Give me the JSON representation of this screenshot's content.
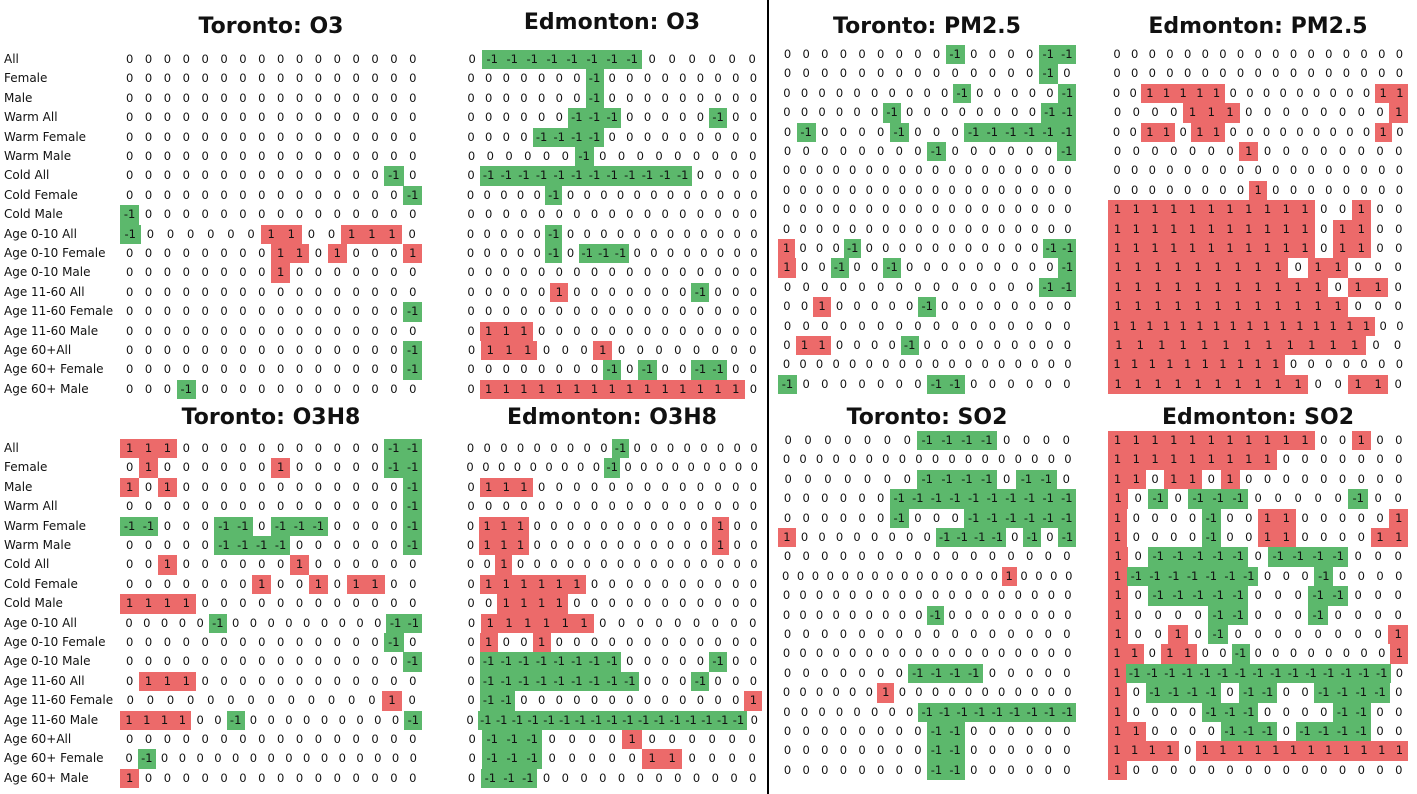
{
  "chart_data": {
    "type": "heatmap",
    "row_labels": [
      "All",
      "Female",
      "Male",
      "Warm All",
      "Warm Female",
      "Warm Male",
      "Cold All",
      "Cold Female",
      "Cold Male",
      "Age 0-10 All",
      "Age 0-10 Female",
      "Age 0-10 Male",
      "Age 11-60 All",
      "Age 11-60 Female",
      "Age 11-60 Male",
      "Age 60+All",
      "Age 60+ Female",
      "Age 60+ Male"
    ],
    "colors": {
      "negative": "#5cb86c",
      "positive": "#ec6a6a",
      "zero": "#ffffff"
    },
    "panels": [
      {
        "title": "Toronto: O3",
        "values": [
          "0000000000000000",
          "0000000000000000",
          "0000000000000000",
          "0000000000000000",
          "0000000000000000",
          "0000000000000000",
          "00000000000000-10",
          "000000000000000-1",
          "-1000000000000000",
          "-100000011001110",
          "0000000011010001",
          "0000000010000000",
          "0000000000000000",
          "000000000000000-1",
          "0000000000000000",
          "000000000000000-1",
          "000000000000000-1",
          "000-1000000000000"
        ]
      },
      {
        "title": "Edmonton: O3",
        "values": [
          "0-1-1-1-1-1-1-1-1000000",
          "0000000-1000000000",
          "0000000-1000000000",
          "000000-1-1-100000-100",
          "0000-1-1-1-1000000000",
          "000000-1000000000",
          "0-1-1-1-1-1-1-1-1-1-1-1-10000",
          "00000-1000000000000",
          "00000000000000000",
          "00000-1000000000000",
          "00000-10-1-1-100000000",
          "00000000000000000",
          "0000010000000-1000",
          "00000000000000000",
          "01110000000000000",
          "0111000100000000",
          "00000000-10-100-1-100",
          "01111111111111110"
        ]
      },
      {
        "title": "Toronto: PM2.5",
        "values": [
          "000000000-10000-1-1",
          "00000000000000-10",
          "0000000000-100000-1",
          "000000-100000000-1-1",
          "0-10000-1000-1-1-1-1-1-1",
          "00000000-1000000-1",
          "000000000000000000",
          "000000000000000000",
          "000000000000000000",
          "000000000000000000",
          "1000-100000000000-1-1",
          "100-100-1000000000-1",
          "00000000000000-1-1",
          "00100000-100000000",
          "0000000000000000",
          "0110000-1000000000",
          "000000000000000000",
          "-10000000-1-1000000"
        ]
      },
      {
        "title": "Edmonton: PM2.5",
        "values": [
          "00000000000000000",
          "00000000000000000",
          "001111100000000011",
          "0000111000000001",
          "001101100000000010",
          "0000000100000000",
          "00000000000000000",
          "00000000100000000",
          "1111111111100100",
          "1111111111101100",
          "1111111111101100",
          "111111111011000",
          "111111111110110",
          "111111111111000",
          "111111111111111100",
          "11111111111100",
          "11111111110000000",
          "111111111100110"
        ]
      },
      {
        "title": "Toronto: O3H8",
        "values": [
          "11100000000000-1-1",
          "01000000100000-1-1",
          "101000000000000-1",
          "000000000000000-1",
          "-1-1000-1-10-1-1-10000-1",
          "00000-1-1-1-1000000-1",
          "0010000001000000",
          "0000000100101100",
          "1111000000000000",
          "00000-1000000000-1-1",
          "00000000000000-10",
          "000000000000000-1",
          "0111000000000000",
          "000000000000010",
          "111100-1000000000-1",
          "0000000000000000",
          "0-1000000000000000",
          "1000000000000000"
        ]
      },
      {
        "title": "Edmonton: O3H8",
        "values": [
          "000000000-100000000",
          "000000000-1000000000",
          "01110000000000000",
          "00000000000000000",
          "011100000000000100",
          "011100000000000100",
          "001000000000000000",
          "01111110000000000",
          "00111100000000000",
          "0111111000000000",
          "01001000000000000",
          "0-1-1-1-1-1-1-1-100000-100",
          "0-1-1-1-1-1-1-1-1-1000-1000",
          "0-1-100000000000001",
          "0-1-1-1-1-1-1-1-1-1-1-1-1-1-1-1-1-10",
          "0-1-1-100001000000",
          "0-1-1-100000110000",
          "0-1-1-1000000000000"
        ]
      },
      {
        "title": "Toronto: SO2",
        "values": [
          "0000000-1-1-1-10000",
          "000000000000000000",
          "0000000-1-1-1-10-1-10",
          "000000-1-1-1-1-1-1-1-1-1-1",
          "000000-1000-1-1-1-1-1-1",
          "100000000-1-1-1-10-10-1",
          "0000000000000000",
          "00000000000000010000",
          "000000000000000000",
          "000000000-100000000",
          "0000000000000000",
          "000000000000000000",
          "0000000-1-1-1-100000",
          "000000100000000000",
          "00000000-1-1-1-1-1-1-1-1-1",
          "00000000-1-1000000",
          "00000000-1-1000000",
          "00000000-1-1000000"
        ]
      },
      {
        "title": "Edmonton: SO2",
        "values": [
          "1111111111100100",
          "1111111110000000",
          "1101101000000000",
          "10-10-1-1-100000-100",
          "10000-10011000001",
          "10000-10011000011",
          "10-1-1-1-1-10-1-1-1-1000",
          "1-1-1-1-1-1-1-1000-10000",
          "10-1-1-1-1-1000-1-1000",
          "10000-1-1000-10000",
          "10010-1000000001",
          "1101100-1000000001",
          "1-1-1-1-1-1-1-1-1-1-1-1-1-1-1-10",
          "10-1-1-1-10-1-100-1-1-1-10",
          "10000-1-1-10000-1-100",
          "110000-1-1-10-1-1-1-100",
          "11110111111111111",
          "1000000000000000"
        ]
      }
    ]
  }
}
